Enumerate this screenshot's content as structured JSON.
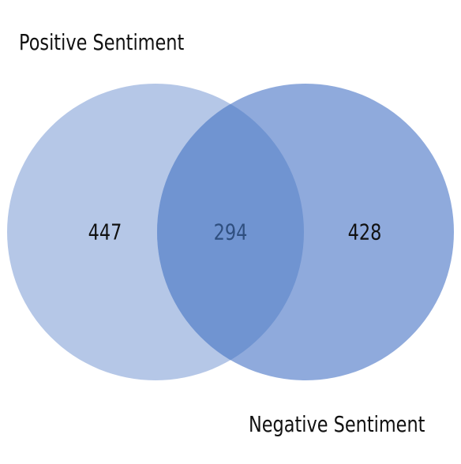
{
  "diagram": {
    "type": "venn",
    "sets": [
      {
        "label": "Positive Sentiment",
        "only_count": "447",
        "fill": "#b5c7e7"
      },
      {
        "label": "Negative Sentiment",
        "only_count": "428",
        "fill": "#8faadc"
      }
    ],
    "intersection": {
      "count": "294",
      "fill": "#7094d1",
      "text_color": "#2f4f7f"
    },
    "count_text_color": "#111111"
  }
}
